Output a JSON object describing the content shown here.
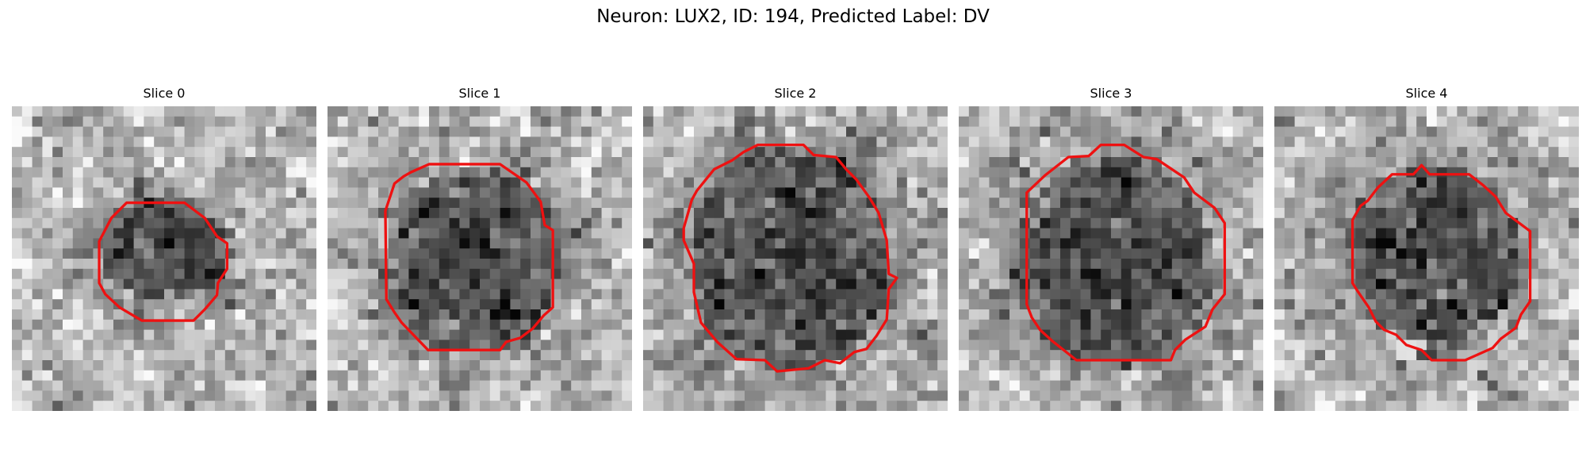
{
  "figure": {
    "title": "Neuron: LUX2, ID: 194, Predicted Label: DV",
    "contour_color": "#ee1111",
    "colormap": "grayscale",
    "grid_size": 30,
    "panels": [
      {
        "title": "Slice 0",
        "seed": 11,
        "cell_center": [
          15.0,
          14.2
        ],
        "cell_radius": [
          6.2,
          5.2
        ],
        "contour": [
          [
            11.3,
            9.5
          ],
          [
            17.0,
            9.5
          ],
          [
            19.0,
            11.0
          ],
          [
            20.2,
            12.8
          ],
          [
            21.2,
            13.5
          ],
          [
            21.2,
            16.0
          ],
          [
            20.3,
            17.4
          ],
          [
            20.2,
            18.6
          ],
          [
            19.0,
            20.0
          ],
          [
            17.9,
            21.1
          ],
          [
            12.8,
            21.1
          ],
          [
            10.6,
            19.8
          ],
          [
            9.2,
            18.5
          ],
          [
            8.6,
            17.4
          ],
          [
            8.6,
            13.3
          ],
          [
            9.8,
            11.0
          ]
        ]
      },
      {
        "title": "Slice 1",
        "seed": 23,
        "cell_center": [
          14.6,
          15.2
        ],
        "cell_radius": [
          8.4,
          9.2
        ],
        "contour": [
          [
            10.0,
            5.7
          ],
          [
            17.0,
            5.7
          ],
          [
            19.6,
            7.5
          ],
          [
            21.0,
            9.4
          ],
          [
            21.4,
            11.7
          ],
          [
            22.2,
            12.2
          ],
          [
            22.2,
            19.8
          ],
          [
            21.3,
            20.6
          ],
          [
            20.2,
            21.9
          ],
          [
            19.0,
            22.8
          ],
          [
            17.6,
            23.2
          ],
          [
            17.0,
            24.0
          ],
          [
            9.9,
            24.0
          ],
          [
            7.3,
            21.3
          ],
          [
            6.6,
            20.3
          ],
          [
            5.8,
            19.0
          ],
          [
            5.7,
            10.3
          ],
          [
            6.6,
            7.6
          ],
          [
            7.5,
            6.9
          ],
          [
            8.2,
            6.5
          ]
        ]
      },
      {
        "title": "Slice 2",
        "seed": 37,
        "cell_center": [
          14.5,
          15.0
        ],
        "cell_radius": [
          10.0,
          11.0
        ],
        "contour": [
          [
            11.3,
            3.8
          ],
          [
            15.8,
            3.8
          ],
          [
            16.8,
            4.8
          ],
          [
            19.0,
            5.0
          ],
          [
            20.0,
            6.2
          ],
          [
            21.0,
            7.2
          ],
          [
            22.3,
            9.0
          ],
          [
            23.2,
            10.5
          ],
          [
            24.0,
            13.2
          ],
          [
            24.2,
            16.5
          ],
          [
            25.0,
            16.9
          ],
          [
            24.2,
            18.0
          ],
          [
            24.0,
            21.0
          ],
          [
            23.0,
            22.6
          ],
          [
            22.0,
            23.9
          ],
          [
            20.8,
            24.2
          ],
          [
            19.4,
            25.3
          ],
          [
            17.9,
            25.0
          ],
          [
            16.3,
            25.8
          ],
          [
            13.2,
            26.1
          ],
          [
            12.0,
            25.0
          ],
          [
            9.2,
            24.9
          ],
          [
            7.3,
            23.2
          ],
          [
            5.7,
            21.3
          ],
          [
            5.0,
            18.3
          ],
          [
            5.0,
            15.5
          ],
          [
            4.0,
            13.2
          ],
          [
            4.0,
            12.0
          ],
          [
            4.8,
            9.2
          ],
          [
            5.3,
            8.3
          ],
          [
            7.0,
            6.2
          ],
          [
            8.8,
            5.3
          ],
          [
            9.9,
            4.5
          ]
        ]
      },
      {
        "title": "Slice 3",
        "seed": 53,
        "cell_center": [
          15.2,
          15.4
        ],
        "cell_radius": [
          9.8,
          10.2
        ],
        "contour": [
          [
            14.0,
            3.8
          ],
          [
            16.3,
            3.8
          ],
          [
            18.2,
            5.0
          ],
          [
            19.5,
            5.2
          ],
          [
            22.2,
            7.0
          ],
          [
            23.2,
            8.5
          ],
          [
            25.2,
            10.0
          ],
          [
            26.2,
            11.5
          ],
          [
            26.2,
            18.5
          ],
          [
            25.0,
            20.0
          ],
          [
            24.3,
            21.7
          ],
          [
            22.3,
            23.0
          ],
          [
            21.3,
            24.0
          ],
          [
            20.9,
            25.0
          ],
          [
            11.6,
            25.0
          ],
          [
            9.2,
            23.1
          ],
          [
            8.0,
            22.0
          ],
          [
            7.2,
            20.8
          ],
          [
            6.7,
            19.5
          ],
          [
            6.7,
            8.5
          ],
          [
            8.5,
            6.8
          ],
          [
            10.8,
            5.0
          ],
          [
            12.8,
            4.9
          ]
        ]
      },
      {
        "title": "Slice 4",
        "seed": 71,
        "cell_center": [
          15.5,
          14.5
        ],
        "cell_radius": [
          8.6,
          9.0
        ],
        "contour": [
          [
            14.5,
            5.8
          ],
          [
            15.3,
            6.7
          ],
          [
            19.2,
            6.7
          ],
          [
            20.6,
            7.8
          ],
          [
            21.8,
            8.9
          ],
          [
            22.8,
            10.5
          ],
          [
            25.2,
            12.3
          ],
          [
            25.2,
            19.2
          ],
          [
            24.3,
            20.5
          ],
          [
            23.8,
            21.8
          ],
          [
            22.3,
            22.9
          ],
          [
            21.5,
            23.8
          ],
          [
            18.8,
            25.0
          ],
          [
            15.5,
            25.0
          ],
          [
            14.5,
            24.0
          ],
          [
            13.0,
            23.5
          ],
          [
            12.0,
            22.5
          ],
          [
            10.8,
            22.0
          ],
          [
            10.0,
            21.2
          ],
          [
            9.3,
            19.8
          ],
          [
            8.2,
            18.2
          ],
          [
            7.7,
            17.4
          ],
          [
            7.7,
            11.2
          ],
          [
            8.5,
            9.8
          ],
          [
            9.2,
            9.3
          ],
          [
            10.2,
            8.0
          ],
          [
            11.6,
            6.7
          ],
          [
            13.7,
            6.7
          ]
        ]
      }
    ]
  }
}
